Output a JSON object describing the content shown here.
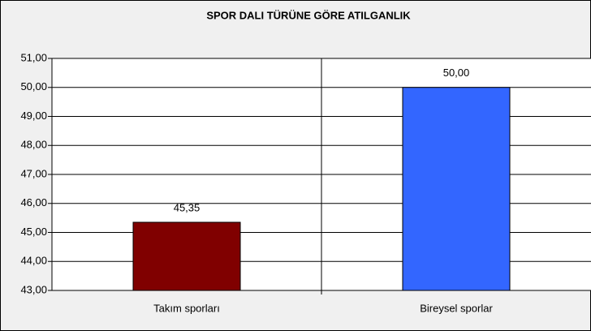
{
  "chart_data": {
    "type": "bar",
    "title": "SPOR DALI TÜRÜNE GÖRE ATILGANLIK",
    "categories": [
      "Takım sporları",
      "Bireysel sporlar"
    ],
    "values": [
      45.35,
      50.0
    ],
    "value_labels": [
      "45,35",
      "50,00"
    ],
    "colors": [
      "#800000",
      "#3366ff"
    ],
    "ylim": [
      43,
      51
    ],
    "yticks": [
      {
        "value": 43,
        "label": "43,00"
      },
      {
        "value": 44,
        "label": "44,00"
      },
      {
        "value": 45,
        "label": "45,00"
      },
      {
        "value": 46,
        "label": "46,00"
      },
      {
        "value": 47,
        "label": "47,00"
      },
      {
        "value": 48,
        "label": "48,00"
      },
      {
        "value": 49,
        "label": "49,00"
      },
      {
        "value": 50,
        "label": "50,00"
      },
      {
        "value": 51,
        "label": "51,00"
      }
    ],
    "grid": true
  }
}
